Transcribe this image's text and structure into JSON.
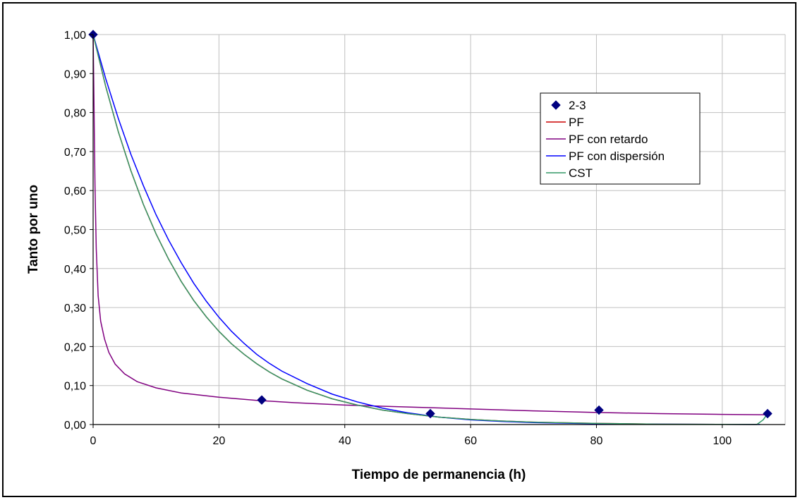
{
  "chart_data": {
    "type": "line",
    "title": "",
    "xlabel": "Tiempo de permanencia (h)",
    "ylabel": "Tanto por uno",
    "xlim": [
      0,
      110
    ],
    "ylim": [
      0,
      1
    ],
    "x_ticks": [
      0,
      20,
      40,
      60,
      80,
      100
    ],
    "x_tick_labels": [
      "0",
      "20",
      "40",
      "60",
      "80",
      "100"
    ],
    "y_ticks": [
      0,
      0.1,
      0.2,
      0.3,
      0.4,
      0.5,
      0.6,
      0.7,
      0.8,
      0.9,
      1.0
    ],
    "y_tick_labels": [
      "0,00",
      "0,10",
      "0,20",
      "0,30",
      "0,40",
      "0,50",
      "0,60",
      "0,70",
      "0,80",
      "0,90",
      "1,00"
    ],
    "grid": true,
    "legend_position": "top-right",
    "series": [
      {
        "name": "2-3",
        "kind": "scatter",
        "marker": "diamond",
        "color": "#000080",
        "points": [
          [
            0,
            1.0
          ],
          [
            26.8,
            0.063
          ],
          [
            53.6,
            0.028
          ],
          [
            80.4,
            0.037
          ],
          [
            107.2,
            0.028
          ]
        ]
      },
      {
        "name": "PF",
        "kind": "line",
        "color": "#cc0000",
        "points": [
          [
            0,
            1.0
          ],
          [
            2,
            0.867
          ],
          [
            4,
            0.751
          ],
          [
            6,
            0.651
          ],
          [
            8,
            0.564
          ],
          [
            10,
            0.489
          ],
          [
            12,
            0.424
          ],
          [
            14,
            0.367
          ],
          [
            16,
            0.318
          ],
          [
            18,
            0.276
          ],
          [
            20,
            0.239
          ],
          [
            22,
            0.207
          ],
          [
            24,
            0.18
          ],
          [
            26,
            0.156
          ],
          [
            28,
            0.135
          ],
          [
            30,
            0.117
          ],
          [
            34,
            0.088
          ],
          [
            38,
            0.066
          ],
          [
            42,
            0.05
          ],
          [
            46,
            0.037
          ],
          [
            50,
            0.028
          ],
          [
            55,
            0.019
          ],
          [
            60,
            0.013
          ],
          [
            65,
            0.009
          ],
          [
            70,
            0.006
          ],
          [
            80,
            0.003
          ],
          [
            90,
            0.001
          ],
          [
            100,
            0.0005
          ],
          [
            105.5,
            0.0003
          ]
        ]
      },
      {
        "name": "PF con retardo",
        "kind": "line",
        "color": "#800080",
        "points": [
          [
            0,
            1.0
          ],
          [
            0.1,
            0.88
          ],
          [
            0.2,
            0.74
          ],
          [
            0.3,
            0.61
          ],
          [
            0.5,
            0.45
          ],
          [
            0.8,
            0.33
          ],
          [
            1.2,
            0.265
          ],
          [
            1.8,
            0.22
          ],
          [
            2.5,
            0.185
          ],
          [
            3.5,
            0.155
          ],
          [
            5,
            0.13
          ],
          [
            7,
            0.11
          ],
          [
            10,
            0.094
          ],
          [
            14,
            0.081
          ],
          [
            20,
            0.07
          ],
          [
            26,
            0.062
          ],
          [
            32,
            0.056
          ],
          [
            40,
            0.05
          ],
          [
            50,
            0.045
          ],
          [
            60,
            0.04
          ],
          [
            70,
            0.035
          ],
          [
            80,
            0.031
          ],
          [
            90,
            0.028
          ],
          [
            100,
            0.026
          ],
          [
            107,
            0.025
          ]
        ]
      },
      {
        "name": "PF con dispersión",
        "kind": "line",
        "color": "#0000ff",
        "points": [
          [
            0,
            1.0
          ],
          [
            2,
            0.887
          ],
          [
            4,
            0.785
          ],
          [
            6,
            0.693
          ],
          [
            8,
            0.612
          ],
          [
            10,
            0.538
          ],
          [
            12,
            0.473
          ],
          [
            14,
            0.415
          ],
          [
            16,
            0.362
          ],
          [
            18,
            0.316
          ],
          [
            20,
            0.275
          ],
          [
            22,
            0.239
          ],
          [
            24,
            0.208
          ],
          [
            26,
            0.18
          ],
          [
            28,
            0.157
          ],
          [
            30,
            0.137
          ],
          [
            34,
            0.105
          ],
          [
            38,
            0.078
          ],
          [
            42,
            0.058
          ],
          [
            46,
            0.042
          ],
          [
            50,
            0.03
          ],
          [
            55,
            0.019
          ],
          [
            60,
            0.012
          ],
          [
            65,
            0.008
          ],
          [
            70,
            0.005
          ],
          [
            80,
            0.002
          ],
          [
            90,
            0.001
          ],
          [
            100,
            0.0004
          ],
          [
            106,
            0.0002
          ]
        ]
      },
      {
        "name": "CST",
        "kind": "line",
        "color": "#339966",
        "points": [
          [
            0,
            1.0
          ],
          [
            2,
            0.867
          ],
          [
            4,
            0.751
          ],
          [
            6,
            0.651
          ],
          [
            8,
            0.564
          ],
          [
            10,
            0.489
          ],
          [
            12,
            0.424
          ],
          [
            14,
            0.367
          ],
          [
            16,
            0.318
          ],
          [
            18,
            0.276
          ],
          [
            20,
            0.239
          ],
          [
            22,
            0.207
          ],
          [
            24,
            0.18
          ],
          [
            26,
            0.156
          ],
          [
            28,
            0.135
          ],
          [
            30,
            0.117
          ],
          [
            34,
            0.088
          ],
          [
            38,
            0.066
          ],
          [
            42,
            0.05
          ],
          [
            46,
            0.037
          ],
          [
            50,
            0.028
          ],
          [
            55,
            0.019
          ],
          [
            60,
            0.013
          ],
          [
            65,
            0.009
          ],
          [
            70,
            0.006
          ],
          [
            80,
            0.003
          ],
          [
            90,
            0.001
          ],
          [
            100,
            0.0005
          ],
          [
            105.5,
            0.0003
          ],
          [
            106.5,
            0.012
          ],
          [
            107.2,
            0.028
          ]
        ]
      }
    ]
  }
}
